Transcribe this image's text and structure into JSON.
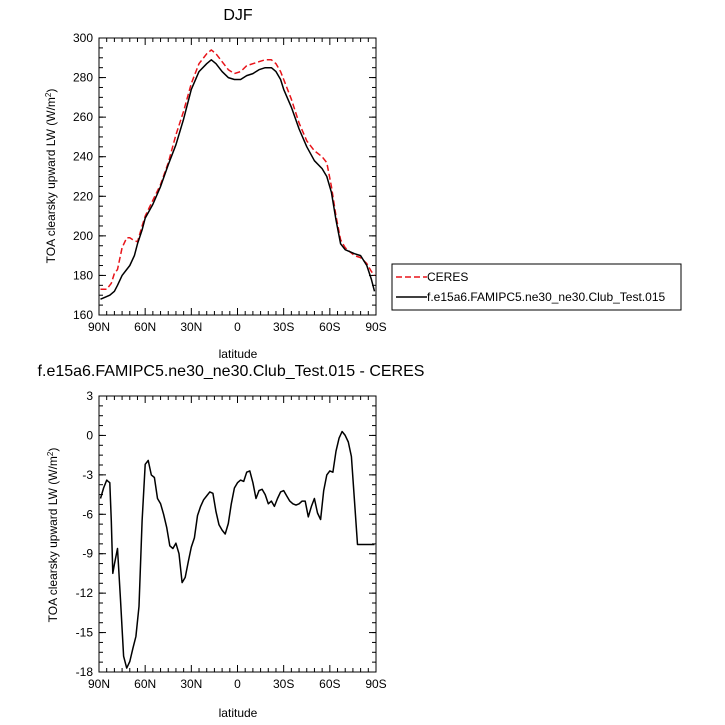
{
  "chart_data": [
    {
      "type": "line",
      "title": "DJF",
      "xlabel": "latitude",
      "ylabel": "TOA clearsky upward LW (W/m²)",
      "xlim": [
        90,
        -90
      ],
      "ylim": [
        160,
        300
      ],
      "xticks": [
        90,
        60,
        30,
        0,
        -30,
        -60,
        -90
      ],
      "xtick_labels": [
        "90N",
        "60N",
        "30N",
        "0",
        "30S",
        "60S",
        "90S"
      ],
      "yticks": [
        160,
        180,
        200,
        220,
        240,
        260,
        280,
        300
      ],
      "ytick_labels": [
        "160",
        "180",
        "200",
        "220",
        "240",
        "260",
        "280",
        "300"
      ],
      "legend_position": "right",
      "series": [
        {
          "name": "CERES",
          "color": "#e8141a",
          "dash": "dashed",
          "x": [
            89,
            85,
            82,
            80,
            78,
            75,
            72,
            70,
            68,
            65,
            62,
            60,
            55,
            50,
            45,
            40,
            35,
            30,
            25,
            20,
            17,
            14,
            10,
            6,
            2,
            -2,
            -6,
            -10,
            -14,
            -18,
            -22,
            -25,
            -28,
            -30,
            -35,
            -40,
            -45,
            -50,
            -55,
            -58,
            -61,
            -64,
            -67,
            -70,
            -73,
            -76,
            -80,
            -84,
            -87,
            -89
          ],
          "y": [
            173,
            173,
            176,
            181,
            183,
            194,
            199,
            199,
            198,
            197,
            205,
            210,
            218,
            226,
            237,
            251,
            263,
            277,
            287,
            292,
            294,
            292,
            288,
            284,
            282,
            283,
            286,
            287,
            288,
            289,
            289,
            287,
            283,
            279,
            269,
            257,
            248,
            243,
            240,
            237,
            225,
            210,
            198,
            194,
            192,
            190,
            189,
            186,
            182,
            180
          ]
        },
        {
          "name": "f.e15a6.FAMIPC5.ne30_ne30.Club_Test.015",
          "color": "#000000",
          "dash": "solid",
          "x": [
            89,
            86,
            83,
            80,
            78,
            75,
            72,
            70,
            67,
            65,
            62,
            60,
            55,
            50,
            45,
            40,
            35,
            30,
            25,
            20,
            17,
            14,
            10,
            6,
            2,
            -2,
            -6,
            -10,
            -14,
            -18,
            -22,
            -25,
            -28,
            -30,
            -35,
            -40,
            -45,
            -50,
            -55,
            -58,
            -61,
            -64,
            -67,
            -70,
            -73,
            -76,
            -80,
            -84,
            -87,
            -89
          ],
          "y": [
            168,
            169,
            170,
            172,
            175,
            180,
            183,
            185,
            190,
            196,
            203,
            209,
            216,
            225,
            236,
            246,
            259,
            274,
            283,
            287,
            289,
            287,
            283,
            280,
            279,
            279,
            281,
            282,
            284,
            285,
            285,
            283,
            279,
            274,
            265,
            254,
            245,
            238,
            234,
            230,
            222,
            208,
            196,
            193,
            192,
            191,
            190,
            185,
            178,
            172
          ]
        }
      ]
    },
    {
      "type": "line",
      "title": "f.e15a6.FAMIPC5.ne30_ne30.Club_Test.015 - CERES",
      "xlabel": "latitude",
      "ylabel": "TOA clearsky upward LW (W/m²)",
      "xlim": [
        90,
        -90
      ],
      "ylim": [
        -18,
        3
      ],
      "xticks": [
        90,
        60,
        30,
        0,
        -30,
        -60,
        -90
      ],
      "xtick_labels": [
        "90N",
        "60N",
        "30N",
        "0",
        "30S",
        "60S",
        "90S"
      ],
      "yticks": [
        3,
        0,
        -3,
        -6,
        -9,
        -12,
        -15,
        -18
      ],
      "ytick_labels": [
        "3",
        "0",
        "-3",
        "-6",
        "-9",
        "-12",
        "-15",
        "-18"
      ],
      "series": [
        {
          "color": "#000000",
          "dash": "solid",
          "x": [
            89,
            87,
            85,
            84,
            83,
            82,
            81,
            80,
            78,
            76,
            74,
            72,
            70,
            68,
            66,
            64,
            62,
            60,
            58,
            56,
            54,
            52,
            50,
            48,
            46,
            44,
            42,
            40,
            38,
            36,
            34,
            32,
            30,
            28,
            26,
            24,
            22,
            20,
            18,
            16,
            14,
            12,
            10,
            8,
            6,
            4,
            2,
            0,
            -2,
            -4,
            -6,
            -8,
            -10,
            -12,
            -14,
            -16,
            -18,
            -20,
            -22,
            -24,
            -26,
            -28,
            -30,
            -32,
            -34,
            -36,
            -38,
            -40,
            -42,
            -44,
            -46,
            -48,
            -50,
            -52,
            -54,
            -56,
            -58,
            -60,
            -62,
            -64,
            -66,
            -68,
            -70,
            -72,
            -74,
            -76,
            -78,
            -80,
            -82,
            -84,
            -86,
            -88,
            -89
          ],
          "y": [
            -4.8,
            -4.0,
            -3.4,
            -3.5,
            -3.6,
            -6.5,
            -10.5,
            -9.8,
            -8.6,
            -12.5,
            -16.8,
            -17.7,
            -17.2,
            -16.2,
            -15.3,
            -13.0,
            -6.5,
            -2.2,
            -1.9,
            -3.0,
            -3.2,
            -4.8,
            -5.2,
            -6.0,
            -7.0,
            -8.4,
            -8.6,
            -8.2,
            -9.0,
            -11.2,
            -10.8,
            -9.6,
            -8.5,
            -7.8,
            -6.1,
            -5.4,
            -4.9,
            -4.6,
            -4.3,
            -4.4,
            -5.8,
            -6.8,
            -7.2,
            -7.5,
            -6.7,
            -5.2,
            -4.0,
            -3.6,
            -3.4,
            -3.5,
            -2.8,
            -2.7,
            -3.6,
            -4.8,
            -4.2,
            -4.1,
            -4.5,
            -5.2,
            -5.0,
            -5.4,
            -4.8,
            -4.3,
            -4.2,
            -4.6,
            -5.0,
            -5.2,
            -5.3,
            -5.2,
            -5.0,
            -5.0,
            -6.2,
            -5.4,
            -4.8,
            -5.9,
            -6.4,
            -4.2,
            -3.0,
            -2.7,
            -2.8,
            -1.2,
            -0.2,
            0.3,
            0.0,
            -0.5,
            -1.6,
            -5.0,
            -8.3,
            -8.3,
            -8.3,
            -8.3,
            -8.3,
            -8.3,
            -8.3
          ]
        }
      ]
    }
  ]
}
